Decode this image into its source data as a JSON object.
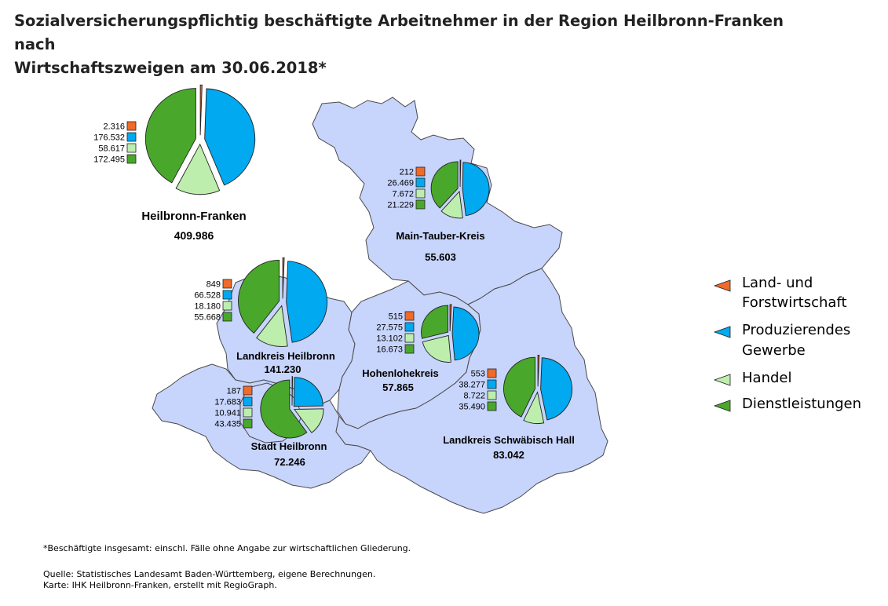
{
  "title": {
    "line1": "Sozialversicherungspflichtig beschäftigte Arbeitnehmer in der Region Heilbronn-Franken nach",
    "line2": "Wirtschaftszweigen am 30.06.2018*"
  },
  "colors": {
    "map_fill": "#c7d4fb",
    "map_stroke": "#4a4a4a",
    "Land- und Forstwirtschaft": "#f06a2a",
    "Produzierendes Gewerbe": "#00a9f0",
    "Handel": "#bdeeae",
    "Dienstleistungen": "#49a82b"
  },
  "legend": [
    {
      "label": "Land- und Forstwirtschaft",
      "lines": [
        "Land- und",
        "Forstwirtschaft"
      ],
      "icon": "orange-triangle-icon"
    },
    {
      "label": "Produzierendes Gewerbe",
      "lines": [
        "Produzierendes",
        "Gewerbe"
      ],
      "icon": "blue-triangle-icon"
    },
    {
      "label": "Handel",
      "lines": [
        "Handel"
      ],
      "icon": "light-green-triangle-icon"
    },
    {
      "label": "Dienstleistungen",
      "lines": [
        "Dienstleistungen"
      ],
      "icon": "green-triangle-icon"
    }
  ],
  "regions": [
    {
      "name": "Heilbronn-Franken",
      "total": "409.986",
      "values": [
        "2.316",
        "176.532",
        "58.617",
        "172.495"
      ]
    },
    {
      "name": "Main-Tauber-Kreis",
      "total": "55.603",
      "values": [
        "212",
        "26.469",
        "7.672",
        "21.229"
      ]
    },
    {
      "name": "Landkreis Heilbronn",
      "total": "141.230",
      "values": [
        "849",
        "66.528",
        "18.180",
        "55.668"
      ]
    },
    {
      "name": "Hohenlohekreis",
      "total": "57.865",
      "values": [
        "515",
        "27.575",
        "13.102",
        "16.673"
      ]
    },
    {
      "name": "Landkreis Schwäbisch Hall",
      "total": "83.042",
      "values": [
        "553",
        "38.277",
        "8.722",
        "35.490"
      ]
    },
    {
      "name": "Stadt Heilbronn",
      "total": "72.246",
      "values": [
        "187",
        "17.683",
        "10.941",
        "43.435"
      ]
    }
  ],
  "footnote": "*Beschäftigte insgesamt: einschl. Fälle ohne Angabe zur wirtschaftlichen Gliederung.",
  "source": {
    "line1": "Quelle: Statistisches Landesamt Baden-Württemberg, eigene Berechnungen.",
    "line2": "Karte: IHK Heilbronn-Franken, erstellt mit RegioGraph."
  }
}
